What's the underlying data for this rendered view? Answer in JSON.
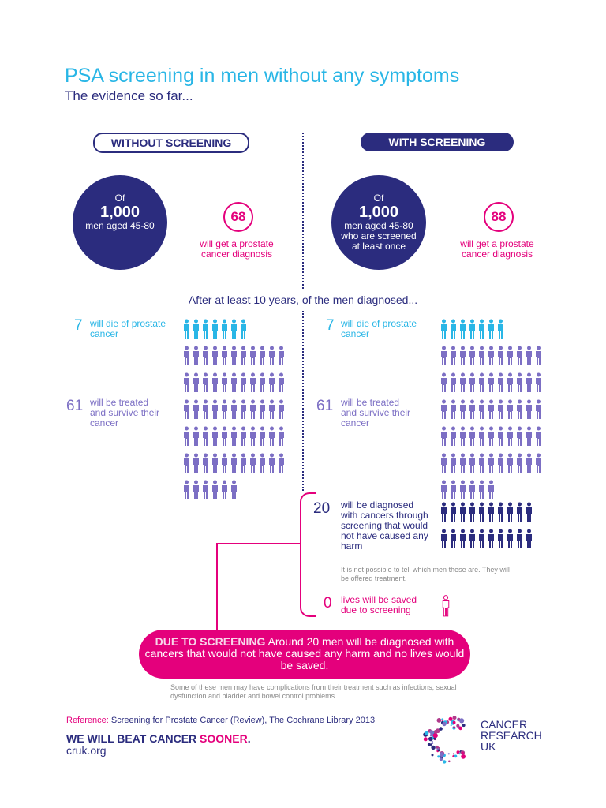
{
  "header": {
    "title": "PSA screening in men without any symptoms",
    "subtitle": "The evidence so far..."
  },
  "without": {
    "label": "WITHOUT SCREENING",
    "circle": {
      "of": "Of",
      "number": "1,000",
      "desc": "men aged 45-80"
    },
    "diagnosed": {
      "number": "68",
      "text": "will get a prostate cancer diagnosis"
    },
    "die": {
      "number": "7",
      "text": "will die of prostate cancer"
    },
    "survive": {
      "number": "61",
      "text": "will be treated and survive their cancer"
    }
  },
  "with": {
    "label": "WITH SCREENING",
    "circle": {
      "of": "Of",
      "number": "1,000",
      "desc": "men aged 45-80 who are screened at least once"
    },
    "diagnosed": {
      "number": "88",
      "text": "will get a prostate cancer diagnosis"
    },
    "die": {
      "number": "7",
      "text": "will die of prostate cancer"
    },
    "survive": {
      "number": "61",
      "text": "will be treated and survive their cancer"
    },
    "overdiagnosed": {
      "number": "20",
      "text": "will be diagnosed with cancers through screening that would not have caused any harm"
    },
    "overdiag_note": "It is not possible to tell which men these are. They will be offered treatment.",
    "saved": {
      "number": "0",
      "text": "lives will be saved due to screening"
    }
  },
  "after_heading": "After at least 10 years, of the men diagnosed...",
  "banner": {
    "lead": "DUE TO SCREENING",
    "text": "Around 20 men will be diagnosed with cancers that would not have caused any harm and no lives would be saved."
  },
  "footnote": "Some of these men may have complications from their treatment such as infections, sexual dysfunction and bladder and bowel control problems.",
  "reference": {
    "label": "Reference:",
    "text": "Screening for Prostate Cancer (Review), The Cochrane Library 2013"
  },
  "footer": {
    "slogan_main": "WE WILL BEAT CANCER",
    "slogan_sooner": "SOONER",
    "slogan_end": ".",
    "url": "cruk.org",
    "logo_lines": [
      "CANCER",
      "RESEARCH",
      "UK"
    ]
  },
  "colors": {
    "navy": "#2b2c7e",
    "cyan": "#29b6e6",
    "violet": "#7c6fc4",
    "pink": "#e4007c"
  }
}
